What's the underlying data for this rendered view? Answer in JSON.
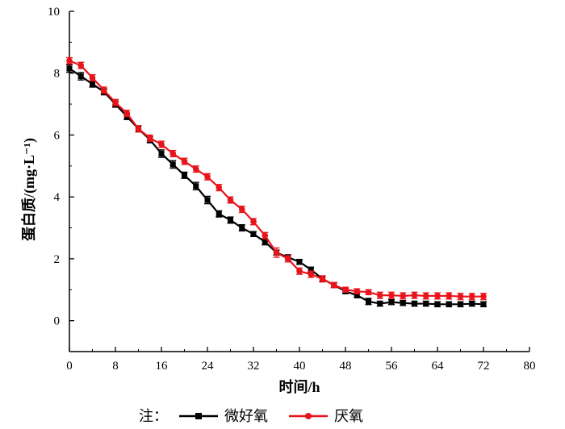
{
  "chart_data": {
    "type": "line",
    "xlabel": "时间/h",
    "ylabel": "蛋白质/(mg·L⁻¹)",
    "xlim": [
      0,
      80
    ],
    "ylim": [
      -1,
      10
    ],
    "xticks": [
      0,
      8,
      16,
      24,
      32,
      40,
      48,
      56,
      64,
      72,
      80
    ],
    "yticks": [
      0,
      2,
      4,
      6,
      8,
      10
    ],
    "grid": false,
    "legend": {
      "prefix": "注：",
      "position": "bottom"
    },
    "series": [
      {
        "name": "微好氧",
        "color": "#000000",
        "marker": "square",
        "x": [
          0,
          2,
          4,
          6,
          8,
          10,
          12,
          14,
          16,
          18,
          20,
          22,
          24,
          26,
          28,
          30,
          32,
          34,
          36,
          38,
          40,
          42,
          44,
          46,
          48,
          50,
          52,
          54,
          56,
          58,
          60,
          62,
          64,
          66,
          68,
          70,
          72
        ],
        "y": [
          8.15,
          7.9,
          7.65,
          7.4,
          7.0,
          6.6,
          6.2,
          5.85,
          5.4,
          5.05,
          4.7,
          4.35,
          3.9,
          3.45,
          3.25,
          3.0,
          2.8,
          2.55,
          2.2,
          2.05,
          1.9,
          1.65,
          1.35,
          1.15,
          0.95,
          0.82,
          0.62,
          0.55,
          0.6,
          0.57,
          0.55,
          0.55,
          0.53,
          0.53,
          0.53,
          0.55,
          0.53
        ],
        "err": [
          0.12,
          0.12,
          0.1,
          0.1,
          0.1,
          0.1,
          0.1,
          0.1,
          0.12,
          0.12,
          0.1,
          0.12,
          0.12,
          0.1,
          0.1,
          0.1,
          0.08,
          0.1,
          0.08,
          0.08,
          0.08,
          0.08,
          0.08,
          0.08,
          0.08,
          0.08,
          0.1,
          0.08,
          0.08,
          0.08,
          0.08,
          0.08,
          0.08,
          0.08,
          0.08,
          0.08,
          0.08
        ]
      },
      {
        "name": "厌氧",
        "color": "#e8141b",
        "marker": "circle",
        "x": [
          0,
          2,
          4,
          6,
          8,
          10,
          12,
          14,
          16,
          18,
          20,
          22,
          24,
          26,
          28,
          30,
          32,
          34,
          36,
          38,
          40,
          42,
          44,
          46,
          48,
          50,
          52,
          54,
          56,
          58,
          60,
          62,
          64,
          66,
          68,
          70,
          72
        ],
        "y": [
          8.4,
          8.25,
          7.85,
          7.45,
          7.05,
          6.7,
          6.2,
          5.9,
          5.7,
          5.4,
          5.15,
          4.9,
          4.65,
          4.3,
          3.9,
          3.6,
          3.2,
          2.75,
          2.2,
          2.0,
          1.6,
          1.5,
          1.35,
          1.15,
          1.0,
          0.95,
          0.92,
          0.82,
          0.82,
          0.8,
          0.82,
          0.8,
          0.8,
          0.8,
          0.78,
          0.78,
          0.78
        ],
        "err": [
          0.1,
          0.1,
          0.1,
          0.1,
          0.1,
          0.1,
          0.1,
          0.1,
          0.1,
          0.1,
          0.1,
          0.1,
          0.1,
          0.1,
          0.1,
          0.1,
          0.1,
          0.1,
          0.15,
          0.1,
          0.1,
          0.1,
          0.1,
          0.08,
          0.08,
          0.08,
          0.08,
          0.1,
          0.1,
          0.1,
          0.1,
          0.1,
          0.1,
          0.1,
          0.1,
          0.1,
          0.1
        ]
      }
    ]
  }
}
